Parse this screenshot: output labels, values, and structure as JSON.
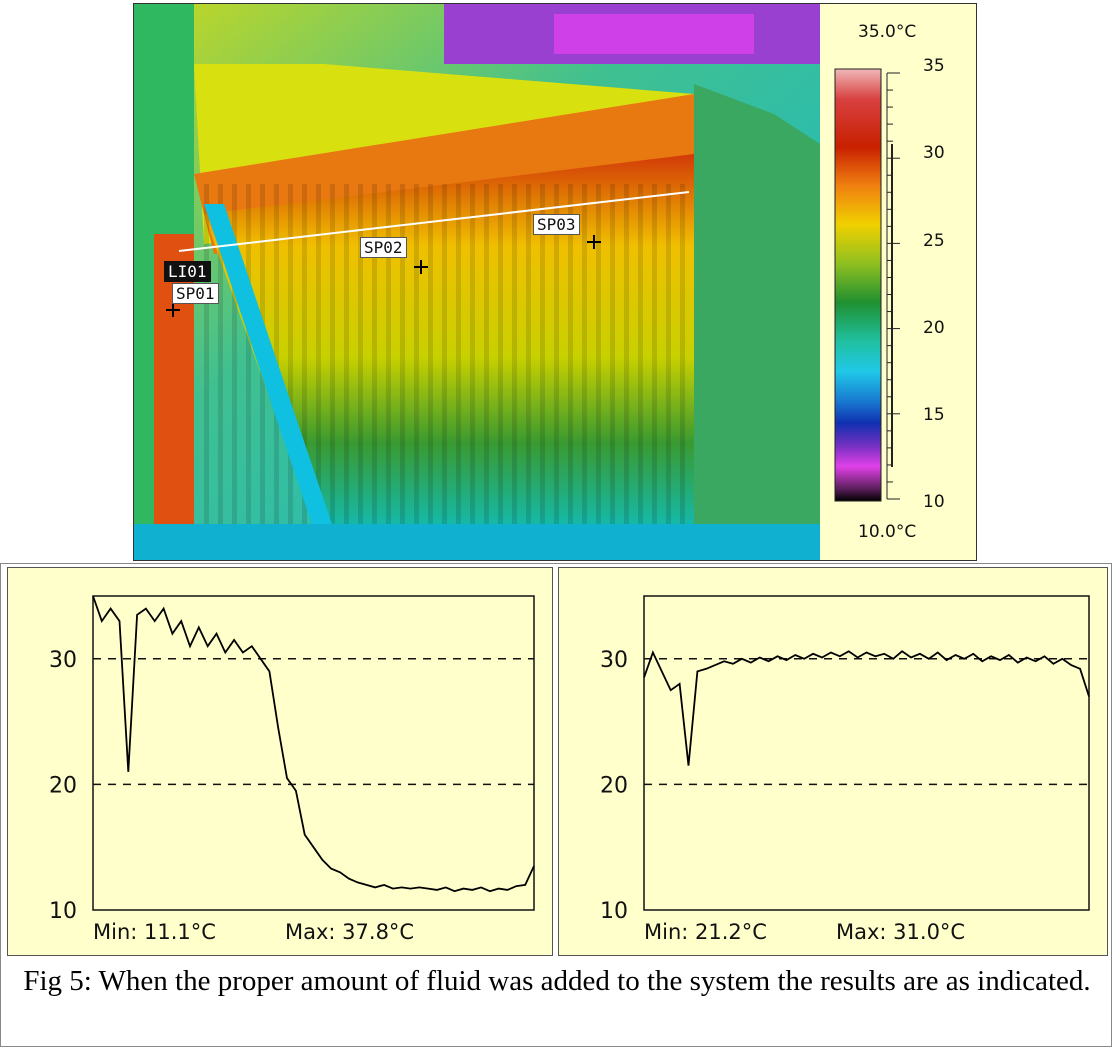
{
  "thermal": {
    "spot_labels": [
      "LI01",
      "SP01",
      "SP02",
      "SP03"
    ],
    "scale_max": "35.0°C",
    "scale_min": "10.0°C",
    "scale_ticks": [
      "35",
      "30",
      "25",
      "20",
      "15",
      "10"
    ]
  },
  "caption": "Fig 5: When the proper amount of fluid was added to the system the results are as indicated.",
  "chart_data": [
    {
      "type": "line",
      "ylim": [
        10,
        35
      ],
      "yticks": [
        10,
        20,
        30
      ],
      "grid": "dashed at 20 and 30",
      "min_label": "Min: 11.1°C",
      "max_label": "Max: 37.8°C",
      "x": [
        0,
        2,
        4,
        6,
        8,
        10,
        12,
        14,
        16,
        18,
        20,
        22,
        24,
        26,
        28,
        30,
        32,
        34,
        36,
        38,
        40,
        42,
        44,
        46,
        48,
        50,
        52,
        54,
        56,
        58,
        60,
        62,
        64,
        66,
        68,
        70,
        72,
        74,
        76,
        78,
        80,
        82,
        84,
        86,
        88,
        90,
        92,
        94,
        96,
        98,
        100
      ],
      "values": [
        35,
        33,
        34,
        33,
        21,
        33.5,
        34,
        33,
        34,
        32,
        33,
        31,
        32.5,
        31,
        32,
        30.5,
        31.5,
        30.5,
        31,
        30,
        29,
        24.5,
        20.5,
        19.5,
        16,
        15,
        14,
        13.3,
        13,
        12.5,
        12.2,
        12,
        11.8,
        12,
        11.7,
        11.8,
        11.7,
        11.8,
        11.7,
        11.6,
        11.8,
        11.5,
        11.7,
        11.6,
        11.8,
        11.5,
        11.7,
        11.6,
        11.9,
        12,
        13.5
      ]
    },
    {
      "type": "line",
      "ylim": [
        10,
        35
      ],
      "yticks": [
        10,
        20,
        30
      ],
      "grid": "dashed at 20 and 30",
      "min_label": "Min: 21.2°C",
      "max_label": "Max: 31.0°C",
      "x": [
        0,
        2,
        4,
        6,
        8,
        10,
        12,
        14,
        16,
        18,
        20,
        22,
        24,
        26,
        28,
        30,
        32,
        34,
        36,
        38,
        40,
        42,
        44,
        46,
        48,
        50,
        52,
        54,
        56,
        58,
        60,
        62,
        64,
        66,
        68,
        70,
        72,
        74,
        76,
        78,
        80,
        82,
        84,
        86,
        88,
        90,
        92,
        94,
        96,
        98,
        100
      ],
      "values": [
        28.5,
        30.5,
        29,
        27.5,
        28,
        21.5,
        29,
        29.2,
        29.5,
        29.8,
        29.6,
        30,
        29.7,
        30.1,
        29.8,
        30.2,
        29.9,
        30.3,
        30,
        30.4,
        30.1,
        30.5,
        30.2,
        30.6,
        30.1,
        30.5,
        30.2,
        30.4,
        30,
        30.6,
        30.1,
        30.4,
        30,
        30.5,
        29.9,
        30.3,
        30,
        30.4,
        29.8,
        30.2,
        29.9,
        30.3,
        29.7,
        30.1,
        29.8,
        30.2,
        29.6,
        30,
        29.5,
        29.2,
        27
      ]
    }
  ]
}
